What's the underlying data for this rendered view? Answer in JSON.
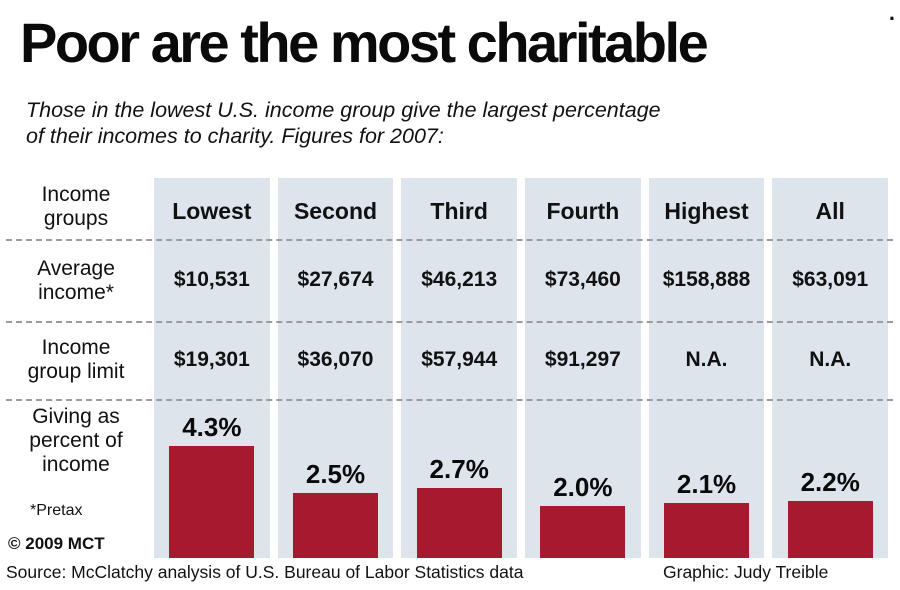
{
  "corner_dot": ".",
  "title": "Poor are the most charitable",
  "subtitle": {
    "line1": "Those in the lowest U.S. income group give the largest percentage",
    "line2": "of their incomes to charity. Figures for 2007:"
  },
  "row_labels": {
    "groups": "Income groups",
    "avg_income": "Average income*",
    "group_limit": "Income group limit",
    "giving": "Giving as percent of income",
    "pretax": "*Pretax",
    "copyright": "© 2009 MCT"
  },
  "columns": [
    {
      "header": "Lowest",
      "avg_income": "$10,531",
      "group_limit": "$19,301",
      "giving_label": "4.3%",
      "giving_value": 4.3
    },
    {
      "header": "Second",
      "avg_income": "$27,674",
      "group_limit": "$36,070",
      "giving_label": "2.5%",
      "giving_value": 2.5
    },
    {
      "header": "Third",
      "avg_income": "$46,213",
      "group_limit": "$57,944",
      "giving_label": "2.7%",
      "giving_value": 2.7
    },
    {
      "header": "Fourth",
      "avg_income": "$73,460",
      "group_limit": "$91,297",
      "giving_label": "2.0%",
      "giving_value": 2.0
    },
    {
      "header": "Highest",
      "avg_income": "$158,888",
      "group_limit": "N.A.",
      "giving_label": "2.1%",
      "giving_value": 2.1
    },
    {
      "header": "All",
      "avg_income": "$63,091",
      "group_limit": "N.A.",
      "giving_label": "2.2%",
      "giving_value": 2.2
    }
  ],
  "footer": {
    "source": "Source: McClatchy analysis of U.S. Bureau of Labor Statistics data",
    "credit": "Graphic: Judy Treible"
  },
  "colors": {
    "bar_red": "#a6192e",
    "stripe": "#dee4eb",
    "text": "#111111"
  },
  "chart_data": {
    "type": "bar",
    "title": "Poor are the most charitable",
    "subtitle": "Those in the lowest U.S. income group give the largest percentage of their incomes to charity. Figures for 2007:",
    "categories": [
      "Lowest",
      "Second",
      "Third",
      "Fourth",
      "Highest",
      "All"
    ],
    "series": [
      {
        "name": "Average income*",
        "values": [
          "$10,531",
          "$27,674",
          "$46,213",
          "$73,460",
          "$158,888",
          "$63,091"
        ]
      },
      {
        "name": "Income group limit",
        "values": [
          "$19,301",
          "$36,070",
          "$57,944",
          "$91,297",
          "N.A.",
          "N.A."
        ]
      },
      {
        "name": "Giving as percent of income",
        "values": [
          4.3,
          2.5,
          2.7,
          2.0,
          2.1,
          2.2
        ]
      }
    ],
    "value_labels": [
      "4.3%",
      "2.5%",
      "2.7%",
      "2.0%",
      "2.1%",
      "2.2%"
    ],
    "ylabel": "Giving as percent of income",
    "ylim": [
      0,
      4.5
    ],
    "grid": false,
    "legend": "none",
    "footnote": "*Pretax",
    "copyright": "© 2009 MCT",
    "source": "Source: McClatchy analysis of U.S. Bureau of Labor Statistics data",
    "credit": "Graphic: Judy Treible"
  }
}
